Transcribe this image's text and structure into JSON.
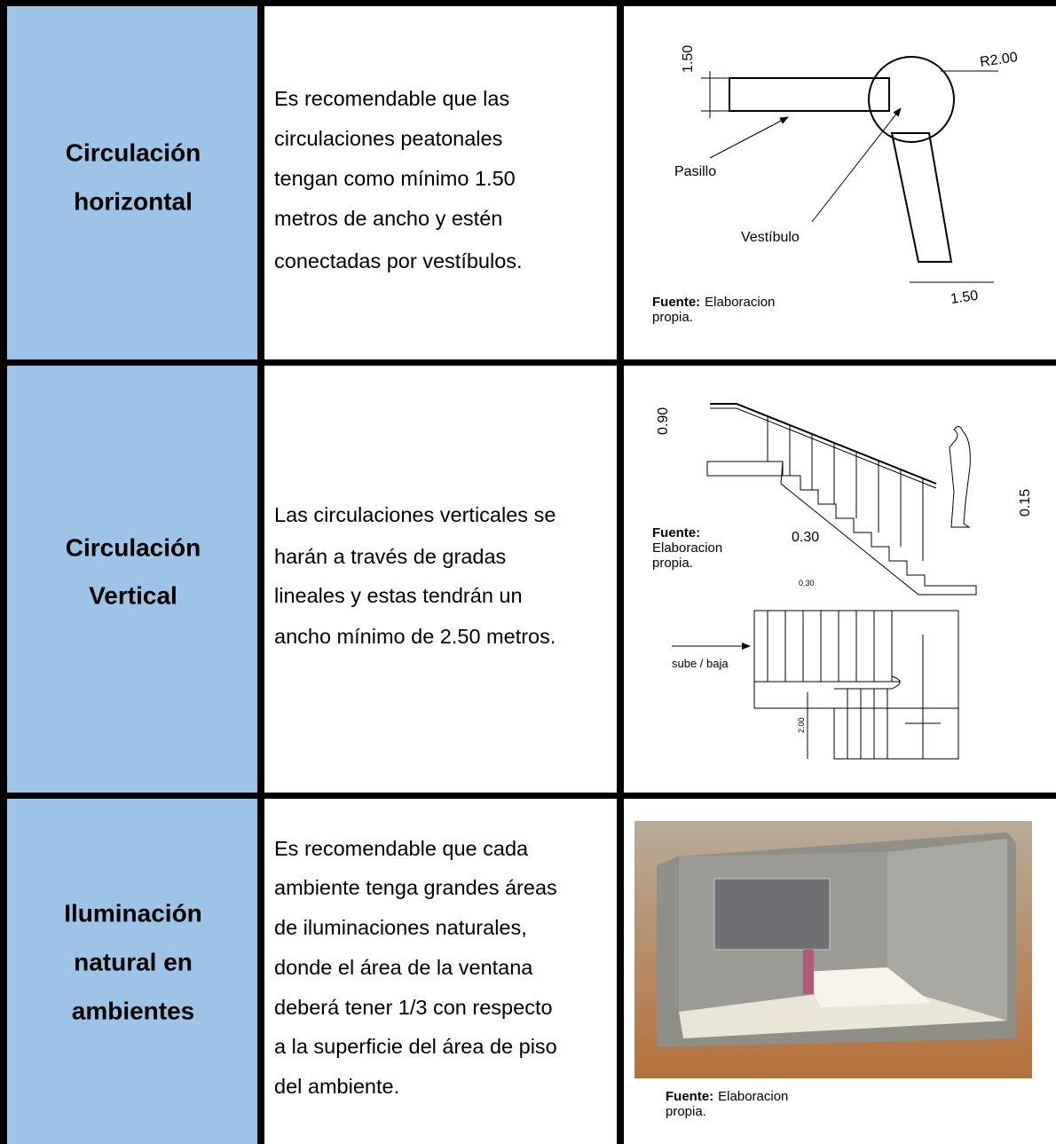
{
  "rows": [
    {
      "label": [
        "Circulación",
        "horizontal"
      ],
      "description": [
        "Es recomendable que las",
        "circulaciones peatonales",
        "tengan como mínimo 1.50",
        "metros de ancho y estén",
        "conectadas por vestíbulos."
      ],
      "figure": {
        "labels": [
          "1.50",
          "R2.00",
          "Pasillo",
          "Vestíbulo",
          "1.50"
        ],
        "source": {
          "label": "Fuente:",
          "text": [
            "Elaboracion",
            "propia."
          ]
        }
      }
    },
    {
      "label": [
        "Circulación",
        "Vertical"
      ],
      "description": [
        "Las circulaciones verticales se",
        "harán a través de gradas",
        "lineales y estas tendrán un",
        "ancho mínimo de 2.50 metros."
      ],
      "figure": {
        "labels": [
          "0.90",
          "0.15",
          "0.30",
          "0.30",
          "sube / baja",
          "2.00"
        ],
        "source": {
          "label": "Fuente:",
          "text": [
            "Elaboracion",
            "propia."
          ]
        }
      }
    },
    {
      "label": [
        "Iluminación",
        "natural en",
        "ambientes"
      ],
      "description": [
        "Es recomendable que cada",
        "ambiente tenga grandes áreas",
        "de iluminaciones naturales,",
        "donde el área de la ventana",
        "deberá tener 1/3  con respecto",
        "a la superficie del área de piso",
        "del ambiente."
      ],
      "figure": {
        "labels": [],
        "source": {
          "label": "Fuente:",
          "text": [
            "Elaboracion",
            "propia."
          ]
        }
      }
    }
  ]
}
